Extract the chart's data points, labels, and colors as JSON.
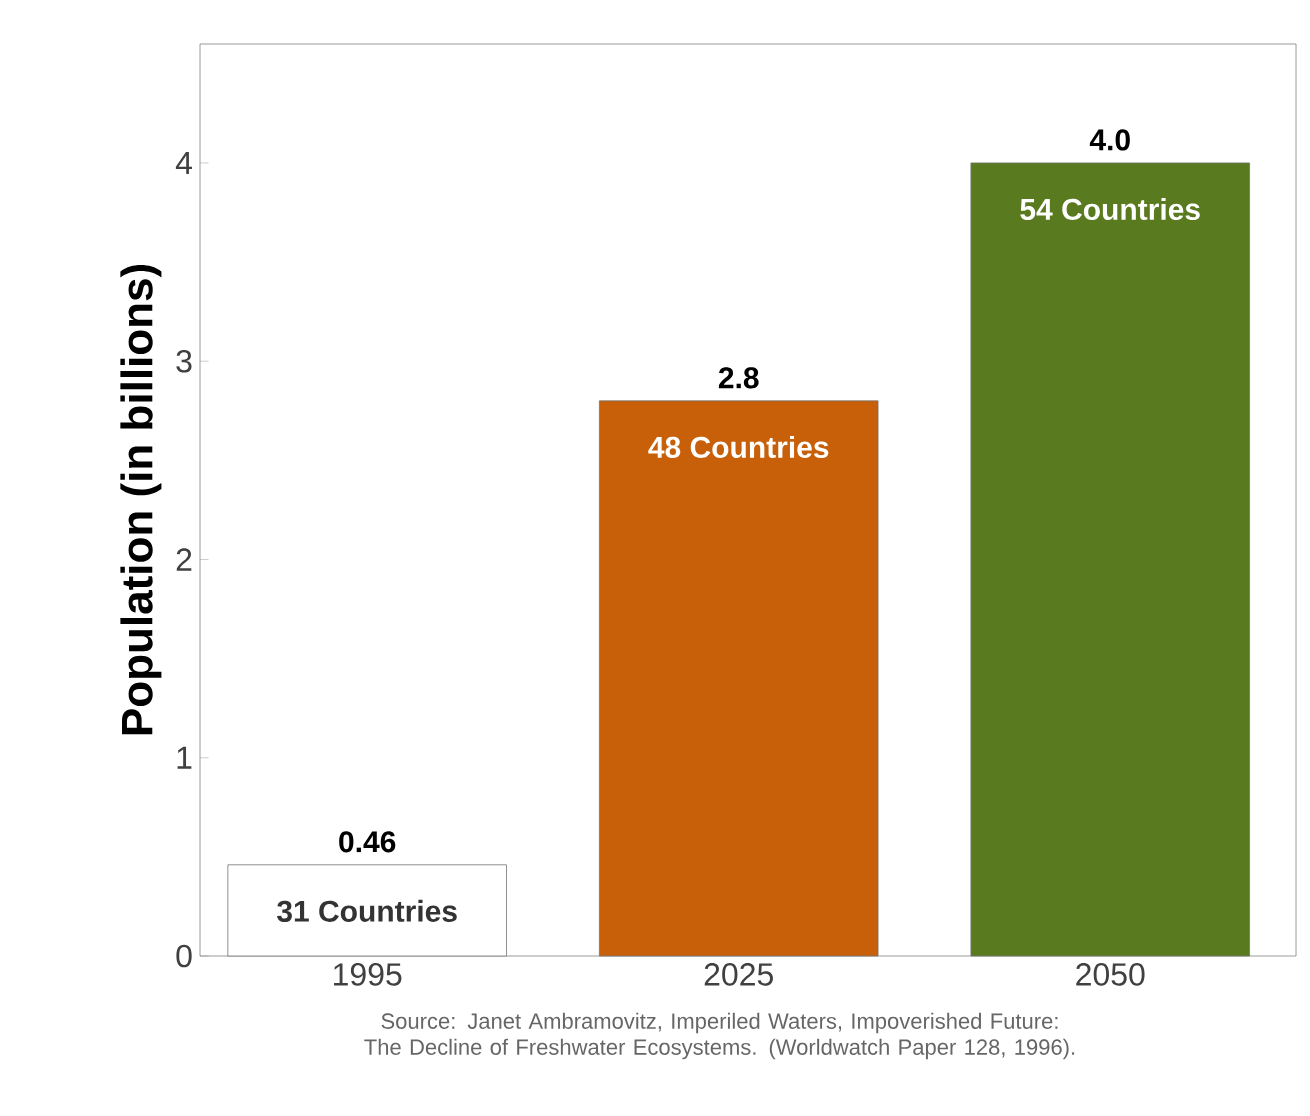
{
  "chart_data": {
    "type": "bar",
    "ylabel": "Population (in billions)",
    "categories": [
      "1995",
      "2025",
      "2050"
    ],
    "values": [
      0.46,
      2.8,
      4.0
    ],
    "colors": [
      "#ffffff",
      "#c8600a",
      "#5a7a20"
    ],
    "value_labels": [
      "0.46",
      "2.8",
      "4.0"
    ],
    "ylim": [
      0,
      4.6
    ],
    "yticks": [
      0,
      1,
      2,
      3,
      4
    ],
    "annotations": [
      {
        "text": "31 Countries",
        "x": "1995",
        "y": 0.46
      },
      {
        "text": "48 Countries",
        "x": "2025",
        "y": 2.8
      },
      {
        "text": "54 Countries",
        "x": "2050",
        "y": 4.0
      },
      "Source: Janet Ambramovitz, Imperiled Waters, Impoverished Future: The Decline of Freshwater Ecosystems. (Worldwatch Paper 128, 1996)."
    ]
  }
}
